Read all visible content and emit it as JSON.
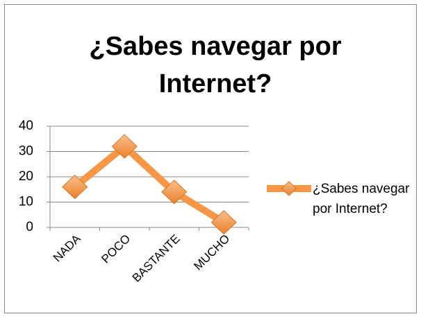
{
  "chart_data": {
    "type": "line",
    "title": "¿Sabes navegar por Internet?",
    "categories": [
      "NADA",
      "POCO",
      "BASTANTE",
      "MUCHO"
    ],
    "series": [
      {
        "name": "¿Sabes navegar por Internet?",
        "color": "#f79646",
        "values": [
          16,
          32,
          14,
          2
        ]
      }
    ],
    "ylim": [
      0,
      40
    ],
    "yticks": [
      0,
      10,
      20,
      30,
      40
    ],
    "grid": true,
    "legend": "right"
  }
}
